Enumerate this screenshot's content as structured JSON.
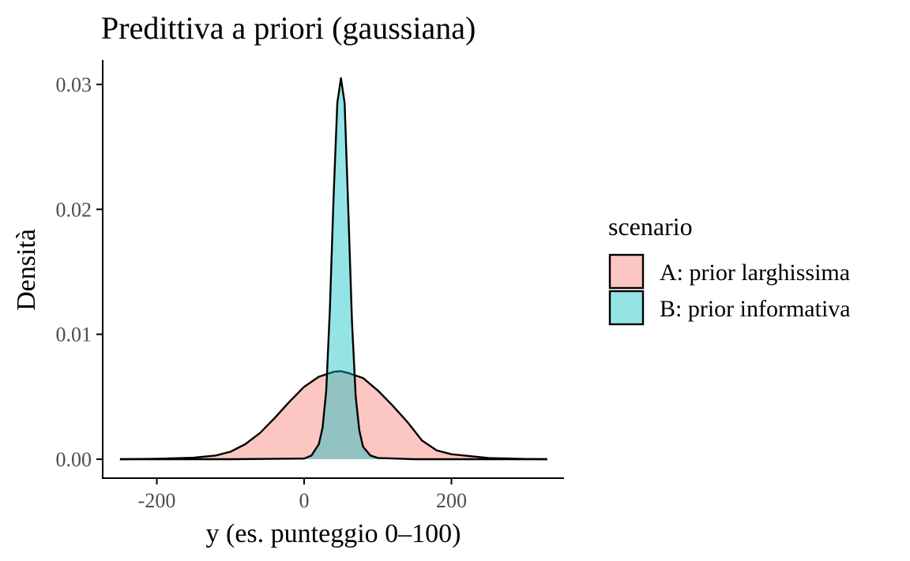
{
  "chart_data": {
    "type": "area",
    "title": "Predittiva a priori (gaussiana)",
    "xlabel": "y (es. punteggio 0–100)",
    "ylabel": "Densità",
    "xlim": [
      -250,
      330
    ],
    "ylim": [
      0,
      0.031
    ],
    "x_ticks": [
      -200,
      0,
      200
    ],
    "x_tick_labels": [
      "-200",
      "0",
      "200"
    ],
    "y_ticks": [
      0,
      0.01,
      0.02,
      0.03
    ],
    "y_tick_labels": [
      "0.00",
      "0.01",
      "0.02",
      "0.03"
    ],
    "grid": false,
    "legend": {
      "title": "scenario",
      "placement": "right"
    },
    "series": [
      {
        "name": "A: prior larghissima",
        "fill": "#f8766d",
        "points": [
          [
            -250,
            0.0
          ],
          [
            -200,
            3e-05
          ],
          [
            -150,
            0.00012
          ],
          [
            -120,
            0.0003
          ],
          [
            -100,
            0.0006
          ],
          [
            -80,
            0.0012
          ],
          [
            -60,
            0.0021
          ],
          [
            -40,
            0.0033
          ],
          [
            -20,
            0.0046
          ],
          [
            0,
            0.0058
          ],
          [
            20,
            0.0066
          ],
          [
            40,
            0.007
          ],
          [
            50,
            0.00705
          ],
          [
            60,
            0.0069
          ],
          [
            80,
            0.0065
          ],
          [
            100,
            0.0055
          ],
          [
            120,
            0.0043
          ],
          [
            140,
            0.003
          ],
          [
            160,
            0.0015
          ],
          [
            180,
            0.0007
          ],
          [
            200,
            0.0004
          ],
          [
            250,
            0.0001
          ],
          [
            300,
            2e-05
          ],
          [
            330,
            0.0
          ]
        ]
      },
      {
        "name": "B: prior informativa",
        "fill": "#00bfc4",
        "points": [
          [
            -250,
            0.0
          ],
          [
            -100,
            0.0
          ],
          [
            0,
            5e-05
          ],
          [
            10,
            0.0003
          ],
          [
            20,
            0.0012
          ],
          [
            25,
            0.0025
          ],
          [
            30,
            0.0055
          ],
          [
            35,
            0.012
          ],
          [
            40,
            0.021
          ],
          [
            45,
            0.0285
          ],
          [
            50,
            0.0305
          ],
          [
            55,
            0.0285
          ],
          [
            60,
            0.02
          ],
          [
            65,
            0.011
          ],
          [
            70,
            0.005
          ],
          [
            75,
            0.0023
          ],
          [
            80,
            0.001
          ],
          [
            90,
            0.0003
          ],
          [
            100,
            0.0001
          ],
          [
            150,
            0.0
          ],
          [
            330,
            0.0
          ]
        ]
      }
    ]
  }
}
